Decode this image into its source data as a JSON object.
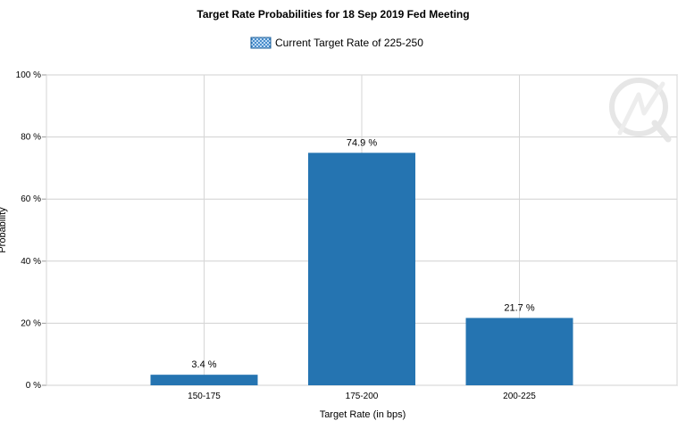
{
  "chart_data": {
    "type": "bar",
    "title": "Target Rate Probabilities for 18 Sep 2019 Fed Meeting",
    "xlabel": "Target Rate (in bps)",
    "ylabel": "Probability",
    "categories": [
      "150-175",
      "175-200",
      "200-225"
    ],
    "series": [
      {
        "name": "Current Target Rate of 225-250",
        "values": [
          3.4,
          74.9,
          21.7
        ],
        "labels": [
          "3.4 %",
          "74.9 %",
          "21.7 %"
        ],
        "color": "#2574b1"
      }
    ],
    "ylim": [
      0,
      100
    ],
    "yticks": [
      {
        "value": 0,
        "label": "0 %"
      },
      {
        "value": 20,
        "label": "20 %"
      },
      {
        "value": 40,
        "label": "40 %"
      },
      {
        "value": 60,
        "label": "60 %"
      },
      {
        "value": 80,
        "label": "80 %"
      },
      {
        "value": 100,
        "label": "100 %"
      }
    ],
    "grid": true,
    "legend_position": "top-center",
    "watermark": "Q-logo"
  }
}
